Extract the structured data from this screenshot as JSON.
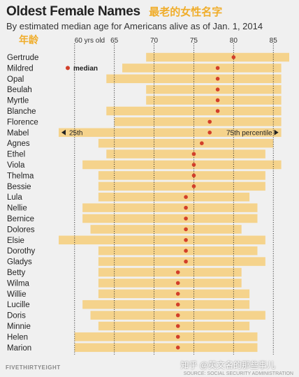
{
  "header": {
    "title": "Oldest Female Names",
    "title_zh": "最老的女性名字",
    "subtitle": "By estimated median age for Americans alive as of Jan. 1, 2014",
    "axis_label_zh": "年龄"
  },
  "footer": {
    "brand": "FIVETHIRTYEIGHT",
    "source": "SOURCE: SOCIAL SECURITY ADMINISTRATION",
    "watermark": "知乎 @英文名的那些事儿"
  },
  "colors": {
    "bar": "#f5d38c",
    "dot": "#d23f2a",
    "background": "#f0f0f0",
    "text": "#222222",
    "title_zh": "#f0ad2a"
  },
  "chart_data": {
    "type": "range-bar",
    "title": "Oldest Female Names",
    "subtitle": "By estimated median age for Americans alive as of Jan. 1, 2014",
    "x_ticks": [
      60,
      65,
      70,
      75,
      80,
      85
    ],
    "x_tick_labels": [
      "60 yrs old",
      "65",
      "70",
      "75",
      "80",
      "85"
    ],
    "x_range": [
      58,
      87
    ],
    "legend": {
      "median_label": "median",
      "p25_label": "25th",
      "p75_label": "75th percentile"
    },
    "categories": [
      "Gertrude",
      "Mildred",
      "Opal",
      "Beulah",
      "Myrtle",
      "Blanche",
      "Florence",
      "Mabel",
      "Agnes",
      "Ethel",
      "Viola",
      "Thelma",
      "Bessie",
      "Lula",
      "Nellie",
      "Bernice",
      "Dolores",
      "Elsie",
      "Dorothy",
      "Gladys",
      "Betty",
      "Wilma",
      "Willie",
      "Lucille",
      "Doris",
      "Minnie",
      "Helen",
      "Marion"
    ],
    "series": [
      {
        "name": "25th",
        "values": [
          69,
          66,
          64,
          69,
          69,
          64,
          65,
          58,
          63,
          64,
          61,
          63,
          63,
          63,
          61,
          61,
          62,
          58,
          63,
          63,
          63,
          63,
          63,
          61,
          62,
          63,
          60,
          60
        ]
      },
      {
        "name": "median",
        "values": [
          80,
          78,
          78,
          78,
          78,
          78,
          77,
          77,
          76,
          75,
          75,
          75,
          75,
          74,
          74,
          74,
          74,
          74,
          74,
          74,
          73,
          73,
          73,
          73,
          73,
          73,
          73,
          73
        ]
      },
      {
        "name": "75th percentile",
        "values": [
          87,
          86,
          86,
          86,
          86,
          86,
          86,
          86,
          85,
          84,
          86,
          84,
          84,
          82,
          83,
          83,
          81,
          84,
          83,
          84,
          81,
          81,
          82,
          82,
          84,
          82,
          83,
          83
        ]
      }
    ]
  }
}
